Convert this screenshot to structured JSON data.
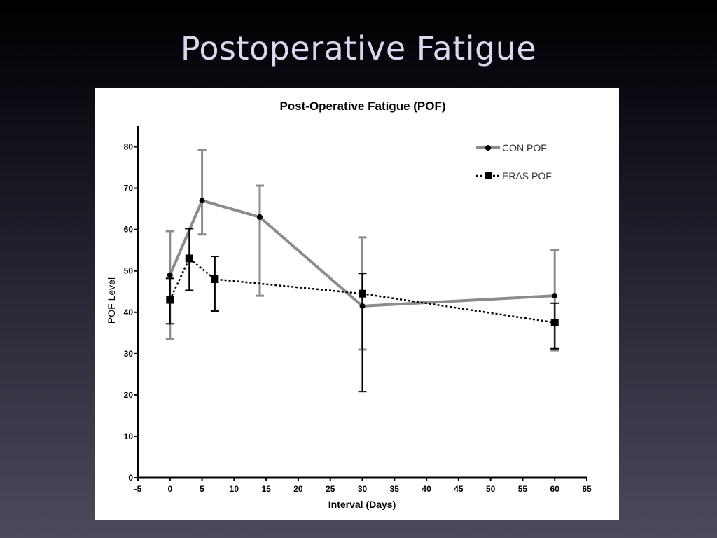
{
  "slide": {
    "title": "Postoperative Fatigue"
  },
  "chart_data": {
    "type": "line",
    "title": "Post-Operative Fatigue (POF)",
    "xlabel": "Interval (Days)",
    "ylabel": "POF Level",
    "xlim": [
      -5,
      65
    ],
    "ylim": [
      0,
      85
    ],
    "xticks": [
      -5,
      0,
      5,
      10,
      15,
      20,
      25,
      30,
      35,
      40,
      45,
      50,
      55,
      60,
      65
    ],
    "yticks": [
      0,
      10,
      20,
      30,
      40,
      50,
      60,
      70,
      80
    ],
    "grid": false,
    "legend_position": "top-right",
    "series": [
      {
        "name": "CON POF",
        "color": "#8c8c8c",
        "line_style": "solid",
        "marker": "circle",
        "x": [
          0,
          5,
          14,
          30,
          60
        ],
        "y": [
          49,
          67,
          63,
          41.5,
          44
        ],
        "err_low": [
          33.5,
          58.8,
          44,
          31,
          30.8
        ],
        "err_high": [
          59.6,
          79.3,
          70.6,
          58.1,
          55.1
        ]
      },
      {
        "name": "ERAS POF",
        "color": "#000000",
        "line_style": "dotted",
        "marker": "square",
        "x": [
          0,
          3,
          7,
          30,
          60
        ],
        "y": [
          43,
          53,
          48,
          44.5,
          37.5
        ],
        "err_low": [
          37.2,
          45.3,
          40.3,
          20.8,
          31.2
        ],
        "err_high": [
          48.2,
          60.2,
          53.5,
          49.4,
          42.2
        ]
      }
    ]
  }
}
